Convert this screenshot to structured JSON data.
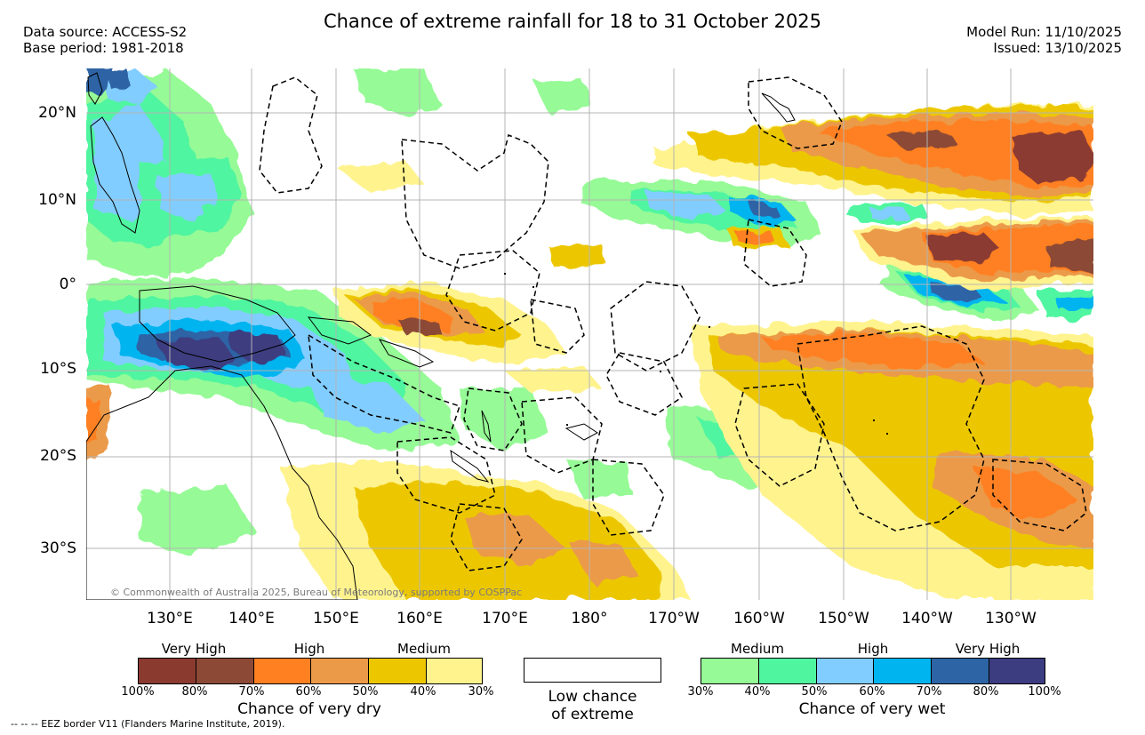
{
  "title": "Chance of extreme rainfall for 18 to 31 October 2025",
  "header_left": {
    "data_source": "Data source: ACCESS-S2",
    "base_period": "Base period: 1981-2018"
  },
  "header_right": {
    "model_run": "Model Run: 11/10/2025",
    "issued": "Issued: 13/10/2025"
  },
  "map": {
    "lat_labels": [
      "20°N",
      "10°N",
      "0°",
      "10°S",
      "20°S",
      "30°S"
    ],
    "lon_labels": [
      "130°E",
      "140°E",
      "150°E",
      "160°E",
      "170°E",
      "180°",
      "170°W",
      "160°W",
      "150°W",
      "140°W",
      "130°W"
    ],
    "credit": "© Commonwealth of Australia 2025, Bureau of Meteorology, supported by COSPPac",
    "colors": {
      "ocean": "#ffffff",
      "grid": "#b4b4b4",
      "coast": "#000000",
      "eez": "#000000"
    }
  },
  "legend": {
    "dry": {
      "categories": [
        "Very High",
        "High",
        "Medium"
      ],
      "colors": [
        "#8b3a30",
        "#8c4a36",
        "#ff8020",
        "#eb9a48",
        "#ecc700",
        "#fff38e"
      ],
      "labels": [
        "100%",
        "80%",
        "70%",
        "60%",
        "50%",
        "40%",
        "30%"
      ],
      "title": "Chance of very dry"
    },
    "neutral": {
      "line1": "Low chance",
      "line2": "of extreme",
      "color": "#ffffff"
    },
    "wet": {
      "categories": [
        "Medium",
        "High",
        "Very High"
      ],
      "colors": [
        "#96fa96",
        "#50f5a0",
        "#82cdff",
        "#00b4f0",
        "#2d64a5",
        "#3c3c80"
      ],
      "labels": [
        "30%",
        "40%",
        "50%",
        "60%",
        "70%",
        "80%",
        "100%"
      ],
      "title": "Chance of very wet"
    }
  },
  "footer": {
    "eez_note": "--  --  -- EEZ border V11 (Flanders Marine Institute, 2019)."
  }
}
